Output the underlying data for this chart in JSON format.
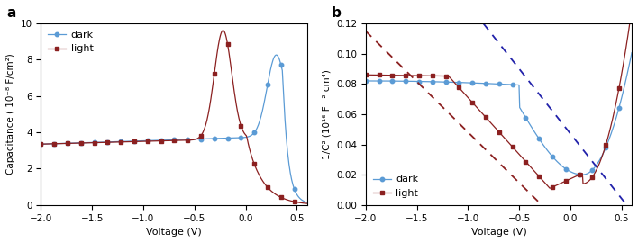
{
  "fig_width": 7.08,
  "fig_height": 2.7,
  "dpi": 100,
  "dark_color": "#5B9BD5",
  "light_color": "#8B2020",
  "dashed_color_dark_blue": "#2222AA",
  "dashed_color_light_red": "#8B2020",
  "plot_a": {
    "label": "a",
    "xlabel": "Voltage (V)",
    "ylabel": "Capacitance ( 10⁻⁸ F/cm²)",
    "xlim": [
      -2.0,
      0.6
    ],
    "ylim": [
      0,
      10
    ],
    "xticks": [
      -2.0,
      -1.5,
      -1.0,
      -0.5,
      0.0,
      0.5
    ],
    "yticks": [
      0,
      2,
      4,
      6,
      8,
      10
    ],
    "legend_labels": [
      "dark",
      "light"
    ]
  },
  "plot_b": {
    "label": "b",
    "xlabel": "Voltage (V)",
    "ylabel": "1/C² (10¹⁶ F ⁻² cm⁴)",
    "xlim": [
      -2.0,
      0.6
    ],
    "ylim": [
      0.0,
      0.12
    ],
    "xticks": [
      -2.0,
      -1.5,
      -1.0,
      -0.5,
      0.0,
      0.5
    ],
    "yticks": [
      0.0,
      0.02,
      0.04,
      0.06,
      0.08,
      0.1,
      0.12
    ],
    "legend_labels": [
      "dark",
      "light"
    ]
  }
}
